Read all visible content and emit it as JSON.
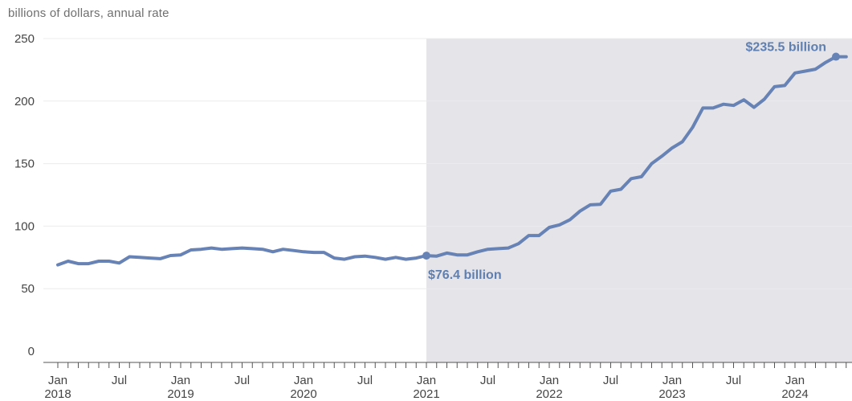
{
  "chart_data": {
    "type": "line",
    "ylabel": "billions of dollars, annual rate",
    "ylim": [
      0,
      250
    ],
    "y_ticks": [
      "0",
      "50",
      "100",
      "150",
      "200",
      "250"
    ],
    "x_ticks": [
      {
        "month": "Jan",
        "year": "2018",
        "index": 0
      },
      {
        "month": "Jul",
        "year": "",
        "index": 6
      },
      {
        "month": "Jan",
        "year": "2019",
        "index": 12
      },
      {
        "month": "Jul",
        "year": "",
        "index": 18
      },
      {
        "month": "Jan",
        "year": "2020",
        "index": 24
      },
      {
        "month": "Jul",
        "year": "",
        "index": 30
      },
      {
        "month": "Jan",
        "year": "2021",
        "index": 36
      },
      {
        "month": "Jul",
        "year": "",
        "index": 42
      },
      {
        "month": "Jan",
        "year": "2022",
        "index": 48
      },
      {
        "month": "Jul",
        "year": "",
        "index": 54
      },
      {
        "month": "Jan",
        "year": "2023",
        "index": 60
      },
      {
        "month": "Jul",
        "year": "",
        "index": 66
      },
      {
        "month": "Jan",
        "year": "2024",
        "index": 72
      }
    ],
    "shaded_region": {
      "start": "2021-01",
      "end": "2024-05"
    },
    "grid": "horizontal",
    "series": [
      {
        "start": "2018-01",
        "color": "#6782b4",
        "values": [
          69,
          72,
          70,
          70,
          72,
          72,
          70.5,
          75.5,
          75,
          74.5,
          74,
          76.5,
          77,
          81,
          81.5,
          82.5,
          81.5,
          82,
          82.5,
          82,
          81.5,
          79.5,
          81.5,
          80.5,
          79.5,
          79,
          79,
          74.5,
          73.5,
          75.5,
          76,
          75,
          73.5,
          75,
          73.5,
          74.5,
          76.4,
          76,
          78.5,
          77,
          77,
          79.5,
          81.5,
          82,
          82.5,
          86,
          92.5,
          92.5,
          99,
          101,
          105,
          112,
          117,
          117.5,
          128,
          129.5,
          138,
          139.5,
          150,
          156,
          162.5,
          167.5,
          179,
          194.5,
          194.5,
          197.5,
          196.5,
          201,
          195,
          201.5,
          211.5,
          212.5,
          222.5,
          224,
          225.5,
          231,
          235.5,
          235.5
        ]
      }
    ],
    "annotations": [
      {
        "text": "$76.4 billion",
        "date": "2021-01",
        "value": 76.4
      },
      {
        "text": "$235.5 billion",
        "date": "2024-05",
        "value": 235.5
      }
    ]
  }
}
